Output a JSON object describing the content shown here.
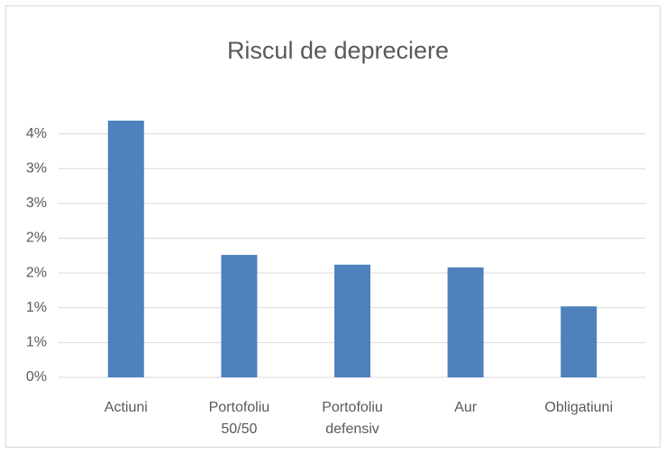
{
  "chart_data": {
    "type": "bar",
    "title": "Riscul de depreciere",
    "categories": [
      "Actiuni",
      "Portofoliu 50/50",
      "Portofoliu defensiv",
      "Aur",
      "Obligatiuni"
    ],
    "values": [
      3.69,
      1.76,
      1.62,
      1.58,
      1.02
    ],
    "color": "#4f81bd",
    "ylim": [
      0,
      4
    ],
    "yticks": [
      {
        "value": 0,
        "label": "0%"
      },
      {
        "value": 0.5,
        "label": "1%"
      },
      {
        "value": 1,
        "label": "1%"
      },
      {
        "value": 1.5,
        "label": "2%"
      },
      {
        "value": 2,
        "label": "2%"
      },
      {
        "value": 2.5,
        "label": "3%"
      },
      {
        "value": 3,
        "label": "3%"
      },
      {
        "value": 3.5,
        "label": "4%"
      }
    ],
    "grid": true
  }
}
